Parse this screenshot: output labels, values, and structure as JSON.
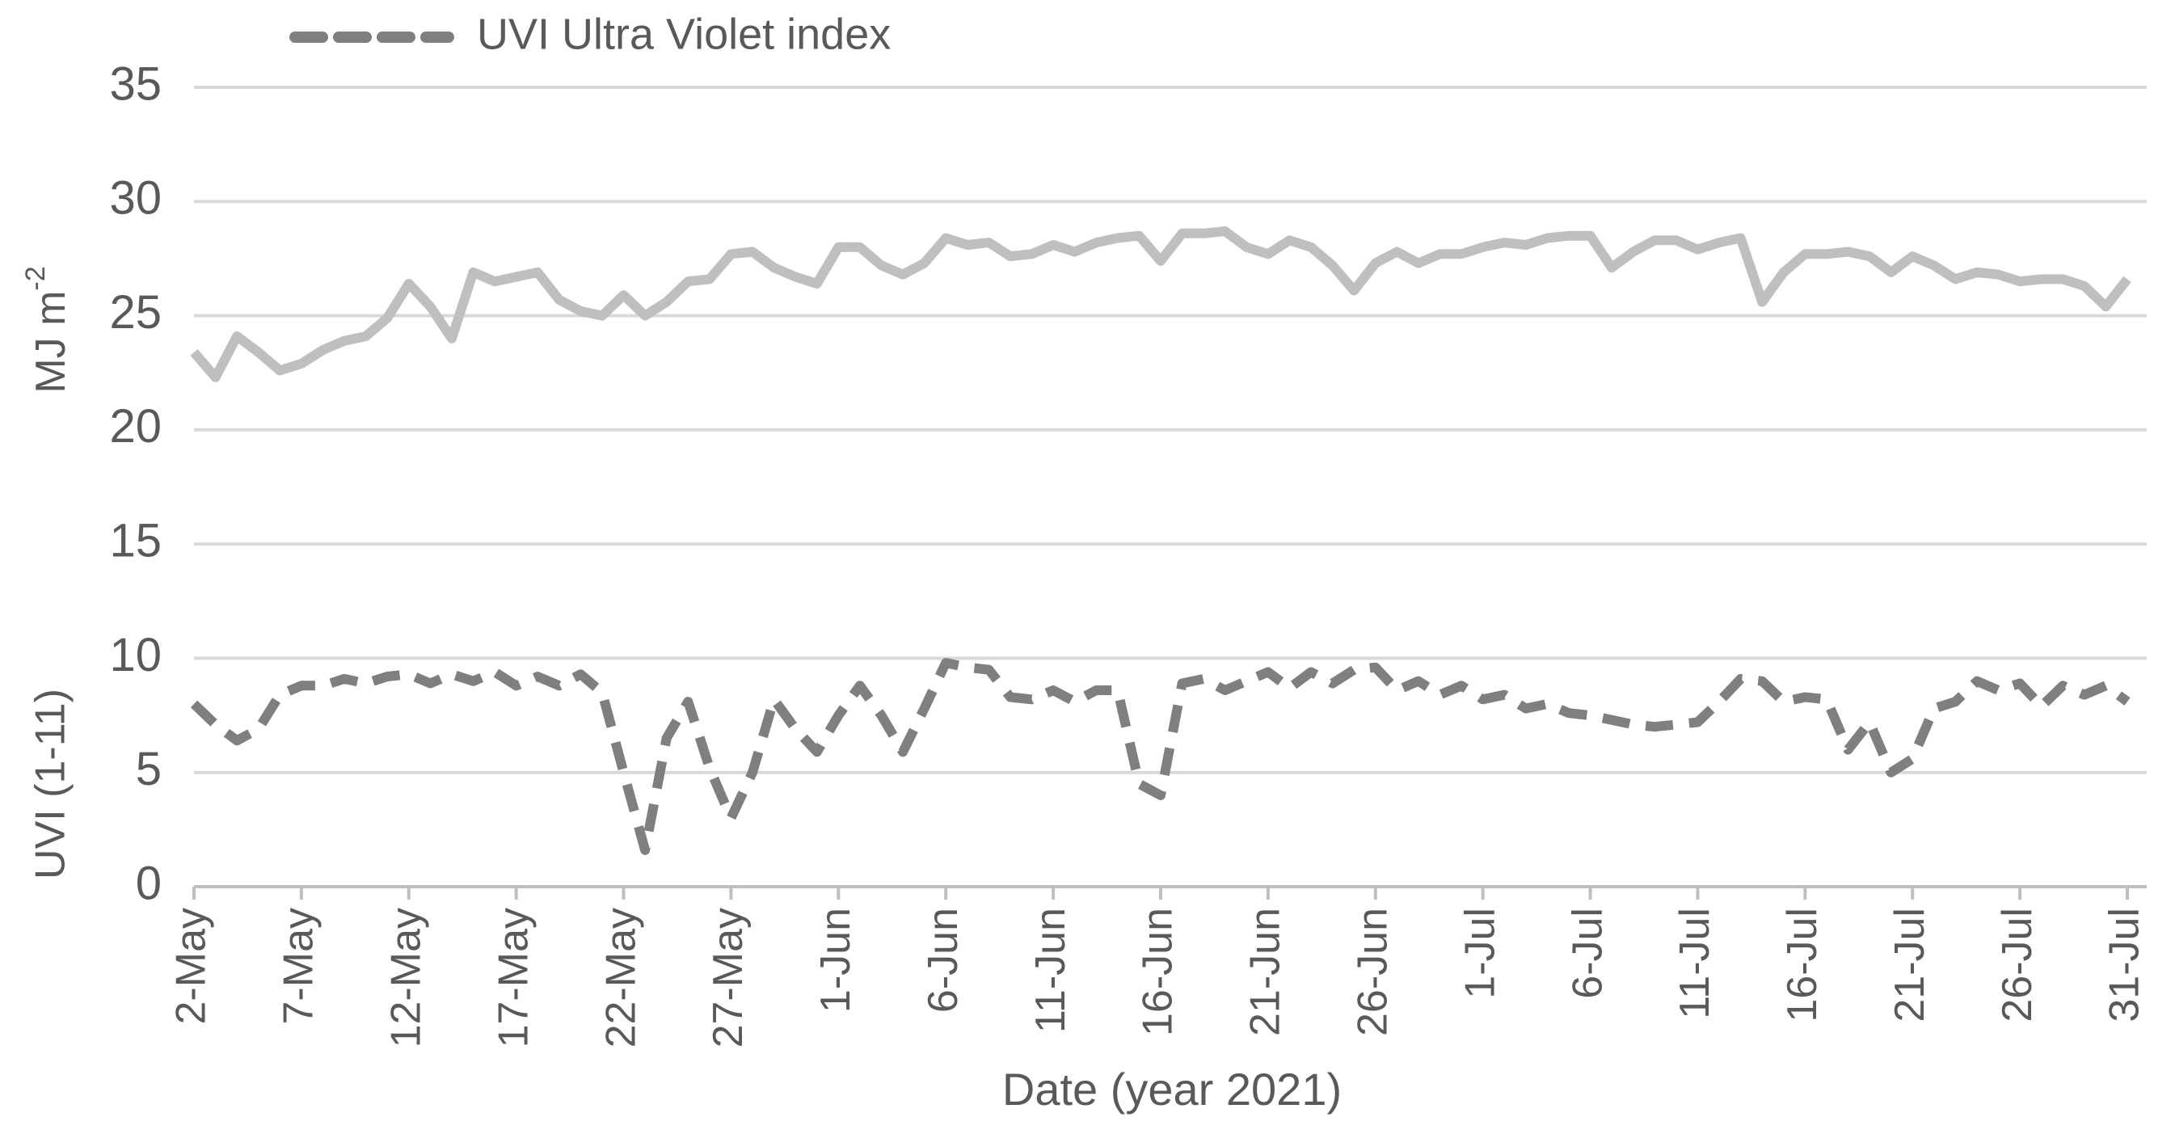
{
  "chart_data": {
    "type": "line",
    "x_label": "Date (year 2021)",
    "y_labels": [
      {
        "text": "MJ m",
        "superscript": "-2"
      },
      {
        "text": "UVI (1-11)"
      }
    ],
    "categories": [
      "2-May",
      null,
      null,
      null,
      null,
      "7-May",
      null,
      null,
      null,
      null,
      "12-May",
      null,
      null,
      null,
      null,
      "17-May",
      null,
      null,
      null,
      null,
      "22-May",
      null,
      null,
      null,
      null,
      "27-May",
      null,
      null,
      null,
      null,
      "1-Jun",
      null,
      null,
      null,
      null,
      "6-Jun",
      null,
      null,
      null,
      null,
      "11-Jun",
      null,
      null,
      null,
      null,
      "16-Jun",
      null,
      null,
      null,
      null,
      "21-Jun",
      null,
      null,
      null,
      null,
      "26-Jun",
      null,
      null,
      null,
      null,
      "1-Jul",
      null,
      null,
      null,
      null,
      "6-Jul",
      null,
      null,
      null,
      null,
      "11-Jul",
      null,
      null,
      null,
      null,
      "16-Jul",
      null,
      null,
      null,
      null,
      "21-Jul",
      null,
      null,
      null,
      null,
      "26-Jul",
      null,
      null,
      null,
      null,
      "31-Jul"
    ],
    "series": [
      {
        "color": "#bfbfbf",
        "dashed": false,
        "values": [
          23.4,
          22.3,
          24.1,
          23.4,
          22.6,
          22.9,
          23.5,
          23.9,
          24.1,
          24.9,
          26.4,
          25.4,
          24.0,
          26.9,
          26.5,
          26.7,
          26.9,
          25.7,
          25.2,
          25.0,
          25.9,
          25.0,
          25.6,
          26.5,
          26.6,
          27.7,
          27.8,
          27.1,
          26.7,
          26.4,
          28.0,
          28.0,
          27.2,
          26.8,
          27.3,
          28.4,
          28.1,
          28.2,
          27.6,
          27.7,
          28.1,
          27.8,
          28.2,
          28.4,
          28.5,
          27.4,
          28.6,
          28.6,
          28.7,
          28.0,
          27.7,
          28.3,
          28.0,
          27.2,
          26.1,
          27.3,
          27.8,
          27.3,
          27.7,
          27.7,
          28.0,
          28.2,
          28.1,
          28.4,
          28.5,
          28.5,
          27.1,
          27.8,
          28.3,
          28.3,
          27.9,
          28.2,
          28.4,
          25.6,
          26.9,
          27.7,
          27.7,
          27.8,
          27.6,
          26.9,
          27.6,
          27.2,
          26.6,
          26.9,
          26.8,
          26.5,
          26.6,
          26.6,
          26.3,
          25.4,
          26.6
        ]
      },
      {
        "name": "UVI Ultra Violet index",
        "color": "#7f7f7f",
        "dashed": true,
        "values": [
          8.0,
          7.1,
          6.4,
          6.9,
          8.4,
          8.8,
          8.8,
          9.1,
          8.9,
          9.2,
          9.3,
          8.9,
          9.3,
          9.0,
          9.4,
          8.8,
          9.2,
          8.8,
          9.3,
          8.5,
          5.0,
          1.6,
          6.5,
          8.1,
          5.2,
          3.0,
          5.0,
          8.2,
          6.9,
          5.9,
          7.5,
          8.8,
          7.5,
          5.9,
          7.8,
          9.8,
          9.6,
          9.5,
          8.3,
          8.2,
          8.6,
          8.1,
          8.6,
          8.6,
          4.5,
          4.0,
          8.9,
          9.1,
          8.6,
          9.0,
          9.4,
          8.7,
          9.4,
          8.9,
          9.5,
          9.6,
          8.6,
          9.0,
          8.4,
          8.8,
          8.2,
          8.4,
          7.8,
          8.0,
          7.6,
          7.5,
          7.3,
          7.1,
          7.0,
          7.1,
          7.2,
          8.1,
          9.1,
          9.0,
          8.1,
          8.3,
          8.2,
          6.0,
          7.2,
          5.0,
          5.6,
          7.8,
          8.1,
          9.0,
          8.6,
          8.9,
          7.9,
          8.8,
          8.4,
          8.8,
          8.1
        ]
      }
    ],
    "ylim": [
      0,
      35
    ],
    "yticks": [
      0,
      5,
      10,
      15,
      20,
      25,
      30,
      35
    ],
    "grid": true,
    "legend": "top-left"
  }
}
